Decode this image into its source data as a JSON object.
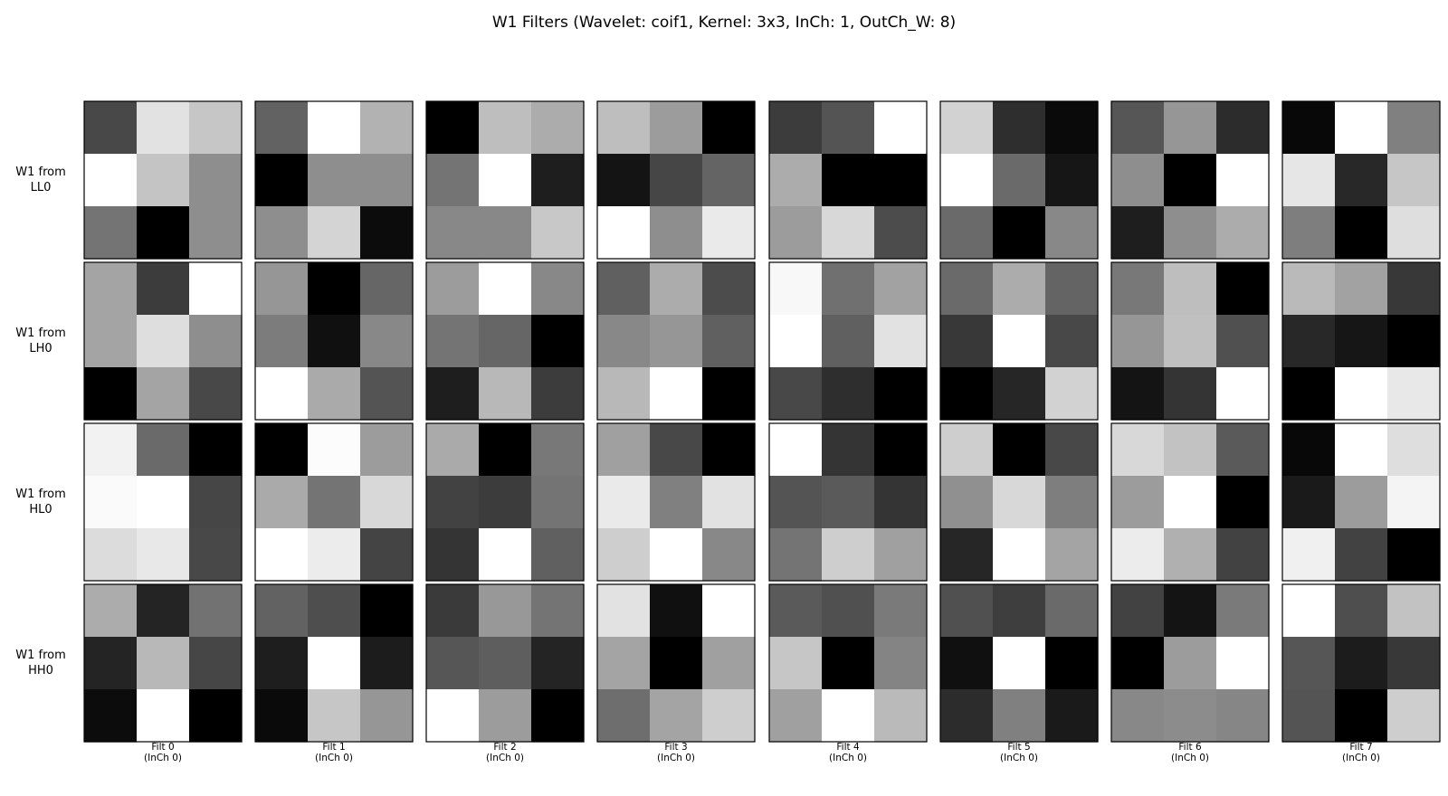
{
  "chart_data": {
    "type": "heatmap",
    "title": "W1 Filters (Wavelet: coif1, Kernel: 3x3, InCh: 1, OutCh_W: 8)",
    "colormap": "gray",
    "value_range": [
      0,
      255
    ],
    "rows": [
      {
        "label_line1": "W1 from",
        "label_line2": "LL0"
      },
      {
        "label_line1": "W1 from",
        "label_line2": "LH0"
      },
      {
        "label_line1": "W1 from",
        "label_line2": "HL0"
      },
      {
        "label_line1": "W1 from",
        "label_line2": "HH0"
      }
    ],
    "columns": [
      {
        "label_line1": "Filt 0",
        "label_line2": "(InCh 0)"
      },
      {
        "label_line1": "Filt 1",
        "label_line2": "(InCh 0)"
      },
      {
        "label_line1": "Filt 2",
        "label_line2": "(InCh 0)"
      },
      {
        "label_line1": "Filt 3",
        "label_line2": "(InCh 0)"
      },
      {
        "label_line1": "Filt 4",
        "label_line2": "(InCh 0)"
      },
      {
        "label_line1": "Filt 5",
        "label_line2": "(InCh 0)"
      },
      {
        "label_line1": "Filt 6",
        "label_line2": "(InCh 0)"
      },
      {
        "label_line1": "Filt 7",
        "label_line2": "(InCh 0)"
      }
    ],
    "filters": [
      [
        [
          [
            72,
            226,
            198
          ],
          [
            255,
            196,
            142
          ],
          [
            116,
            0,
            142
          ]
        ],
        [
          [
            98,
            255,
            178
          ],
          [
            0,
            142,
            142
          ],
          [
            142,
            212,
            12
          ]
        ],
        [
          [
            0,
            190,
            172
          ],
          [
            116,
            255,
            30
          ],
          [
            136,
            136,
            200
          ]
        ],
        [
          [
            190,
            156,
            0
          ],
          [
            20,
            70,
            100
          ],
          [
            255,
            142,
            234
          ]
        ],
        [
          [
            60,
            84,
            255
          ],
          [
            172,
            0,
            0
          ],
          [
            156,
            216,
            76
          ]
        ],
        [
          [
            210,
            46,
            10
          ],
          [
            255,
            106,
            22
          ],
          [
            106,
            0,
            136
          ]
        ],
        [
          [
            86,
            150,
            44
          ],
          [
            142,
            0,
            255
          ],
          [
            30,
            142,
            172
          ]
        ],
        [
          [
            8,
            255,
            128
          ],
          [
            230,
            40,
            198
          ],
          [
            126,
            0,
            222
          ]
        ]
      ],
      [
        [
          [
            164,
            60,
            255
          ],
          [
            164,
            222,
            142
          ],
          [
            0,
            164,
            72
          ]
        ],
        [
          [
            150,
            0,
            102
          ],
          [
            124,
            16,
            136
          ],
          [
            255,
            170,
            84
          ]
        ],
        [
          [
            156,
            255,
            136
          ],
          [
            116,
            102,
            0
          ],
          [
            30,
            184,
            60
          ]
        ],
        [
          [
            96,
            172,
            76
          ],
          [
            136,
            150,
            96
          ],
          [
            184,
            255,
            0
          ]
        ],
        [
          [
            248,
            112,
            162
          ],
          [
            255,
            96,
            226
          ],
          [
            72,
            46,
            0
          ]
        ],
        [
          [
            106,
            172,
            100
          ],
          [
            56,
            255,
            72
          ],
          [
            0,
            38,
            210
          ]
        ],
        [
          [
            120,
            190,
            0
          ],
          [
            150,
            192,
            80
          ],
          [
            20,
            52,
            255
          ]
        ],
        [
          [
            186,
            162,
            56
          ],
          [
            40,
            22,
            0
          ],
          [
            0,
            255,
            232
          ]
        ]
      ],
      [
        [
          [
            242,
            106,
            0
          ],
          [
            250,
            255,
            70
          ],
          [
            220,
            232,
            72
          ]
        ],
        [
          [
            0,
            252,
            156
          ],
          [
            170,
            116,
            216
          ],
          [
            255,
            236,
            68
          ]
        ],
        [
          [
            170,
            0,
            120
          ],
          [
            66,
            60,
            116
          ],
          [
            52,
            255,
            96
          ]
        ],
        [
          [
            160,
            72,
            0
          ],
          [
            234,
            128,
            226
          ],
          [
            206,
            255,
            136
          ]
        ],
        [
          [
            255,
            52,
            0
          ],
          [
            84,
            90,
            52
          ],
          [
            116,
            206,
            160
          ]
        ],
        [
          [
            206,
            0,
            72
          ],
          [
            144,
            216,
            126
          ],
          [
            38,
            255,
            164
          ]
        ],
        [
          [
            216,
            194,
            90
          ],
          [
            156,
            255,
            0
          ],
          [
            236,
            176,
            66
          ]
        ],
        [
          [
            8,
            255,
            222
          ],
          [
            26,
            156,
            244
          ],
          [
            240,
            66,
            0
          ]
        ]
      ],
      [
        [
          [
            172,
            36,
            114
          ],
          [
            36,
            184,
            70
          ],
          [
            12,
            255,
            0
          ]
        ],
        [
          [
            98,
            78,
            0
          ],
          [
            30,
            255,
            28
          ],
          [
            10,
            198,
            150
          ]
        ],
        [
          [
            58,
            152,
            116
          ],
          [
            86,
            94,
            36
          ],
          [
            255,
            156,
            0
          ]
        ],
        [
          [
            226,
            16,
            255
          ],
          [
            164,
            0,
            160
          ],
          [
            110,
            164,
            206
          ]
        ],
        [
          [
            90,
            80,
            122
          ],
          [
            198,
            0,
            132
          ],
          [
            160,
            255,
            186
          ]
        ],
        [
          [
            80,
            62,
            106
          ],
          [
            16,
            255,
            0
          ],
          [
            44,
            128,
            26
          ]
        ],
        [
          [
            66,
            20,
            122
          ],
          [
            0,
            156,
            255
          ],
          [
            136,
            140,
            134
          ]
        ],
        [
          [
            255,
            78,
            194
          ],
          [
            86,
            28,
            56
          ],
          [
            84,
            0,
            206
          ]
        ]
      ]
    ]
  }
}
